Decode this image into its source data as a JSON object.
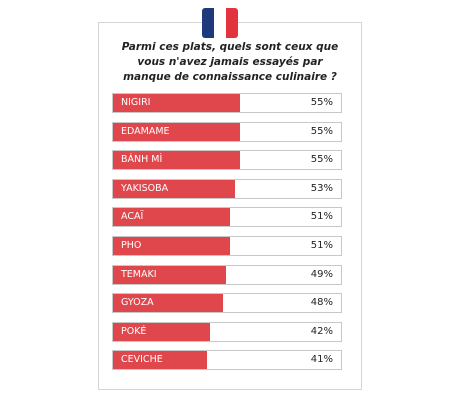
{
  "chart_data": {
    "type": "barh",
    "title": "Parmi ces plats, quels sont ceux que vous n'avez jamais essayés par manque de connaissance culinaire ?",
    "categories": [
      "NIGIRI",
      "EDAMAME",
      "BÁNH MÌ",
      "YAKISOBA",
      "ACAÏ",
      "PHO",
      "TEMAKI",
      "GYOZA",
      "POKÉ",
      "CEVICHE"
    ],
    "values": [
      55,
      55,
      55,
      53,
      51,
      51,
      49,
      48,
      42,
      41
    ],
    "value_labels": [
      "55%",
      "55%",
      "55%",
      "53%",
      "51%",
      "51%",
      "49%",
      "48%",
      "42%",
      "41%"
    ],
    "color": "#e0474c",
    "xlim": [
      0,
      100
    ]
  }
}
